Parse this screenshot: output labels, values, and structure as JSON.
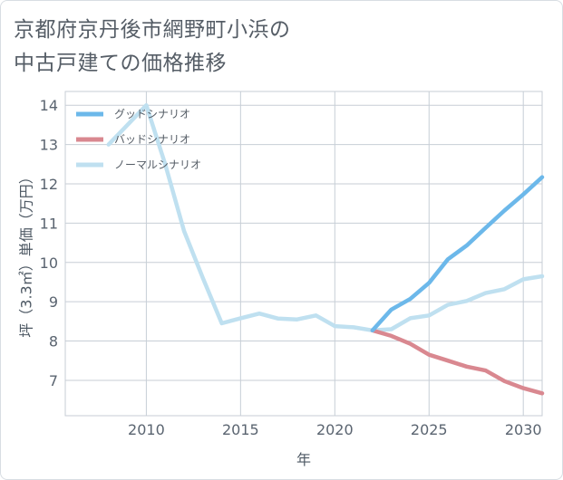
{
  "title_lines": [
    "京都府京丹後市網野町小浜の",
    "中古戸建ての価格推移"
  ],
  "chart_data": {
    "type": "line",
    "title": "京都府京丹後市網野町小浜の中古戸建ての価格推移",
    "xlabel": "年",
    "ylabel": "坪（3.3㎡）単価（万円）",
    "xlim": [
      2005.7,
      2031
    ],
    "ylim": [
      6.1,
      14.35
    ],
    "xticks": [
      2010,
      2015,
      2020,
      2025,
      2030
    ],
    "yticks": [
      7,
      8,
      9,
      10,
      11,
      12,
      13,
      14
    ],
    "grid": true,
    "legend_position": "top-left",
    "series": [
      {
        "name": "グッドシナリオ",
        "color": "#6cb8ea",
        "x": [
          2022,
          2023,
          2024,
          2025,
          2026,
          2027,
          2028,
          2029,
          2030,
          2031
        ],
        "values": [
          8.27,
          8.8,
          9.07,
          9.48,
          10.08,
          10.43,
          10.88,
          11.32,
          11.73,
          12.17
        ]
      },
      {
        "name": "バッドシナリオ",
        "color": "#d98890",
        "x": [
          2022,
          2023,
          2024,
          2025,
          2026,
          2027,
          2028,
          2029,
          2030,
          2031
        ],
        "values": [
          8.27,
          8.13,
          7.93,
          7.65,
          7.5,
          7.35,
          7.25,
          6.98,
          6.8,
          6.67
        ]
      },
      {
        "name": "ノーマルシナリオ",
        "color": "#bfe0f0",
        "x": [
          2008,
          2009,
          2010,
          2011,
          2012,
          2013,
          2014,
          2015,
          2016,
          2017,
          2018,
          2019,
          2020,
          2021,
          2022,
          2023,
          2024,
          2025,
          2026,
          2027,
          2028,
          2029,
          2030,
          2031
        ],
        "values": [
          13.0,
          13.5,
          14.0,
          12.5,
          10.8,
          9.6,
          8.45,
          8.58,
          8.7,
          8.57,
          8.55,
          8.65,
          8.38,
          8.35,
          8.27,
          8.3,
          8.58,
          8.65,
          8.92,
          9.02,
          9.22,
          9.32,
          9.57,
          9.65
        ]
      }
    ]
  }
}
